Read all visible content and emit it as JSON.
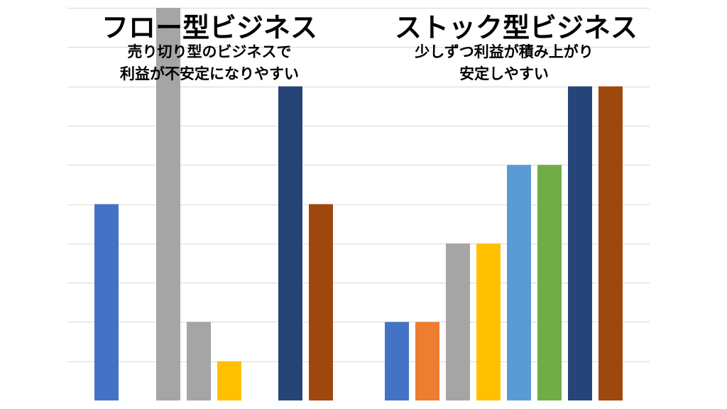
{
  "left_panel": {
    "title": "フロー型ビジネス",
    "subtitle_line1": "売り切り型のビジネスで",
    "subtitle_line2": "利益が不安定になりやすい"
  },
  "right_panel": {
    "title": "ストック型ビジネス",
    "subtitle_line1": "少しずつ利益が積み上がり",
    "subtitle_line2": "安定しやすい"
  },
  "chart_data": [
    {
      "type": "bar",
      "title": "フロー型ビジネス",
      "xlabel": "",
      "ylabel": "",
      "ylim": [
        0,
        10
      ],
      "grid": true,
      "legend": "none",
      "values": [
        5,
        10,
        2,
        1,
        0,
        8,
        5
      ],
      "colors": [
        "#4472c4",
        "#a5a5a5",
        "#a5a5a5",
        "#ffc000",
        "#5b9bd5",
        "#264478",
        "#9e480e"
      ]
    },
    {
      "type": "bar",
      "title": "ストック型ビジネス",
      "xlabel": "",
      "ylabel": "",
      "ylim": [
        0,
        10
      ],
      "grid": true,
      "legend": "none",
      "values": [
        2,
        2,
        4,
        4,
        6,
        6,
        8,
        8
      ],
      "colors": [
        "#4472c4",
        "#ed7d31",
        "#a5a5a5",
        "#ffc000",
        "#5b9bd5",
        "#70ad47",
        "#264478",
        "#9e480e"
      ]
    }
  ]
}
